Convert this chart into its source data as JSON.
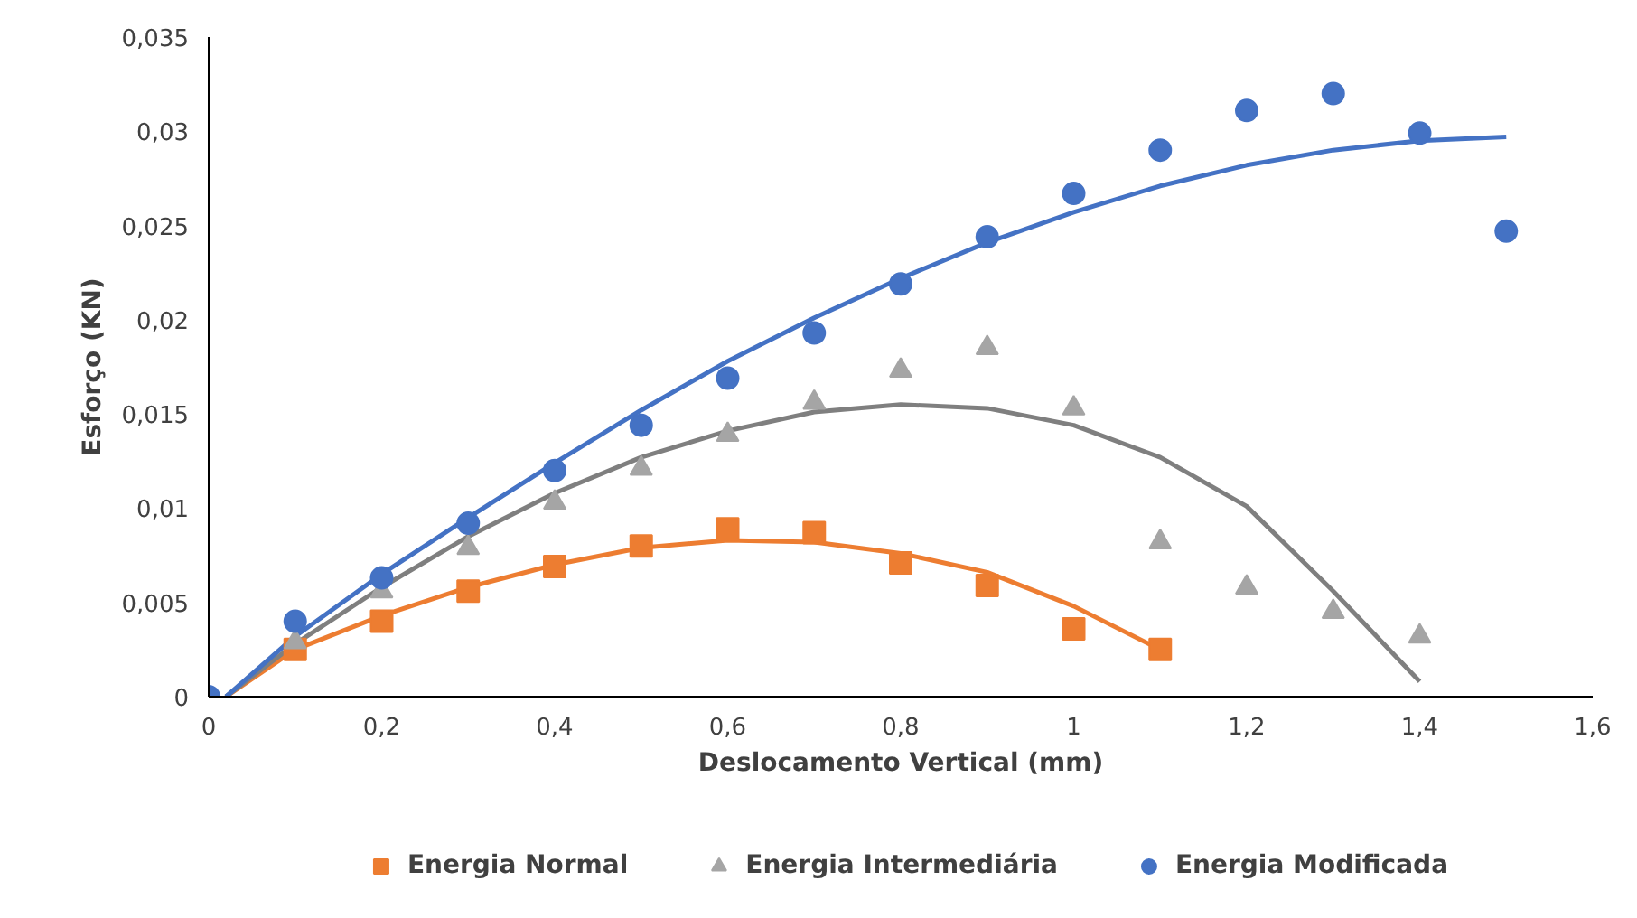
{
  "chart_data": {
    "type": "scatter",
    "xlabel": "Deslocamento Vertical (mm)",
    "ylabel": "Esforço (KN)",
    "xlim": [
      0,
      1.6
    ],
    "ylim": [
      0,
      0.035
    ],
    "xticks": [
      0,
      {
        "value": 0.2,
        "label": "0,2"
      },
      {
        "value": 0.4,
        "label": "0,4"
      },
      {
        "value": 0.6,
        "label": "0,6"
      },
      {
        "value": 0.8,
        "label": "0,8"
      },
      1,
      {
        "value": 1.2,
        "label": "1,2"
      },
      {
        "value": 1.4,
        "label": "1,4"
      },
      {
        "value": 1.6,
        "label": "1,6"
      }
    ],
    "yticks": [
      0,
      {
        "value": 0.005,
        "label": "0,005"
      },
      {
        "value": 0.01,
        "label": "0,01"
      },
      {
        "value": 0.015,
        "label": "0,015"
      },
      {
        "value": 0.02,
        "label": "0,02"
      },
      {
        "value": 0.025,
        "label": "0,025"
      },
      {
        "value": 0.03,
        "label": "0,03"
      },
      {
        "value": 0.035,
        "label": "0,035"
      }
    ],
    "grid": false,
    "legend": "bottom",
    "series": [
      {
        "type": "line",
        "color": "#ed7d31",
        "x": [
          0.02,
          0.1,
          0.2,
          0.3,
          0.4,
          0.5,
          0.6,
          0.7,
          0.8,
          0.9,
          1.0,
          1.1
        ],
        "values": [
          0.0,
          0.0025,
          0.0043,
          0.0058,
          0.007,
          0.0079,
          0.0083,
          0.0082,
          0.0076,
          0.0066,
          0.0048,
          0.0025
        ]
      },
      {
        "type": "line",
        "color": "#7f7f7f",
        "x": [
          0.02,
          0.1,
          0.2,
          0.3,
          0.4,
          0.5,
          0.6,
          0.7,
          0.8,
          0.9,
          1.0,
          1.1,
          1.2,
          1.3,
          1.4
        ],
        "values": [
          0.0,
          0.0028,
          0.0058,
          0.0085,
          0.0108,
          0.0127,
          0.0141,
          0.0151,
          0.0155,
          0.0153,
          0.0144,
          0.0127,
          0.0101,
          0.0056,
          0.0008
        ]
      },
      {
        "type": "line",
        "color": "#4472c4",
        "x": [
          0.02,
          0.1,
          0.2,
          0.3,
          0.4,
          0.5,
          0.6,
          0.7,
          0.8,
          0.9,
          1.0,
          1.1,
          1.2,
          1.3,
          1.4,
          1.5
        ],
        "values": [
          0.0,
          0.0032,
          0.0065,
          0.0095,
          0.0124,
          0.0152,
          0.0178,
          0.0201,
          0.0222,
          0.0241,
          0.0257,
          0.0271,
          0.0282,
          0.029,
          0.0295,
          0.0297
        ]
      },
      {
        "name": "Energia Normal",
        "marker": "square",
        "color": "#ed7d31",
        "x": [
          0.1,
          0.2,
          0.3,
          0.4,
          0.5,
          0.6,
          0.7,
          0.8,
          0.9,
          1.0,
          1.1
        ],
        "values": [
          0.0025,
          0.004,
          0.0056,
          0.0069,
          0.008,
          0.0089,
          0.0087,
          0.0071,
          0.0059,
          0.0036,
          0.0025
        ]
      },
      {
        "name": "Energia Intermediária",
        "marker": "triangle",
        "color": "#a5a5a5",
        "x": [
          0.1,
          0.2,
          0.3,
          0.4,
          0.5,
          0.6,
          0.7,
          0.8,
          0.9,
          1.0,
          1.1,
          1.2,
          1.3,
          1.4
        ],
        "values": [
          0.0029,
          0.0056,
          0.0079,
          0.0103,
          0.0121,
          0.0139,
          0.0156,
          0.0173,
          0.0185,
          0.0153,
          0.0082,
          0.0058,
          0.0045,
          0.0032
        ]
      },
      {
        "name": "Energia Modificada",
        "marker": "circle",
        "color": "#4472c4",
        "x": [
          0,
          0.1,
          0.2,
          0.3,
          0.4,
          0.5,
          0.6,
          0.7,
          0.8,
          0.9,
          1.0,
          1.1,
          1.2,
          1.3,
          1.4,
          1.5
        ],
        "values": [
          0,
          0.004,
          0.0063,
          0.0092,
          0.012,
          0.0144,
          0.0169,
          0.0193,
          0.0219,
          0.0244,
          0.0267,
          0.029,
          0.0311,
          0.032,
          0.0299,
          0.0247
        ]
      }
    ]
  }
}
